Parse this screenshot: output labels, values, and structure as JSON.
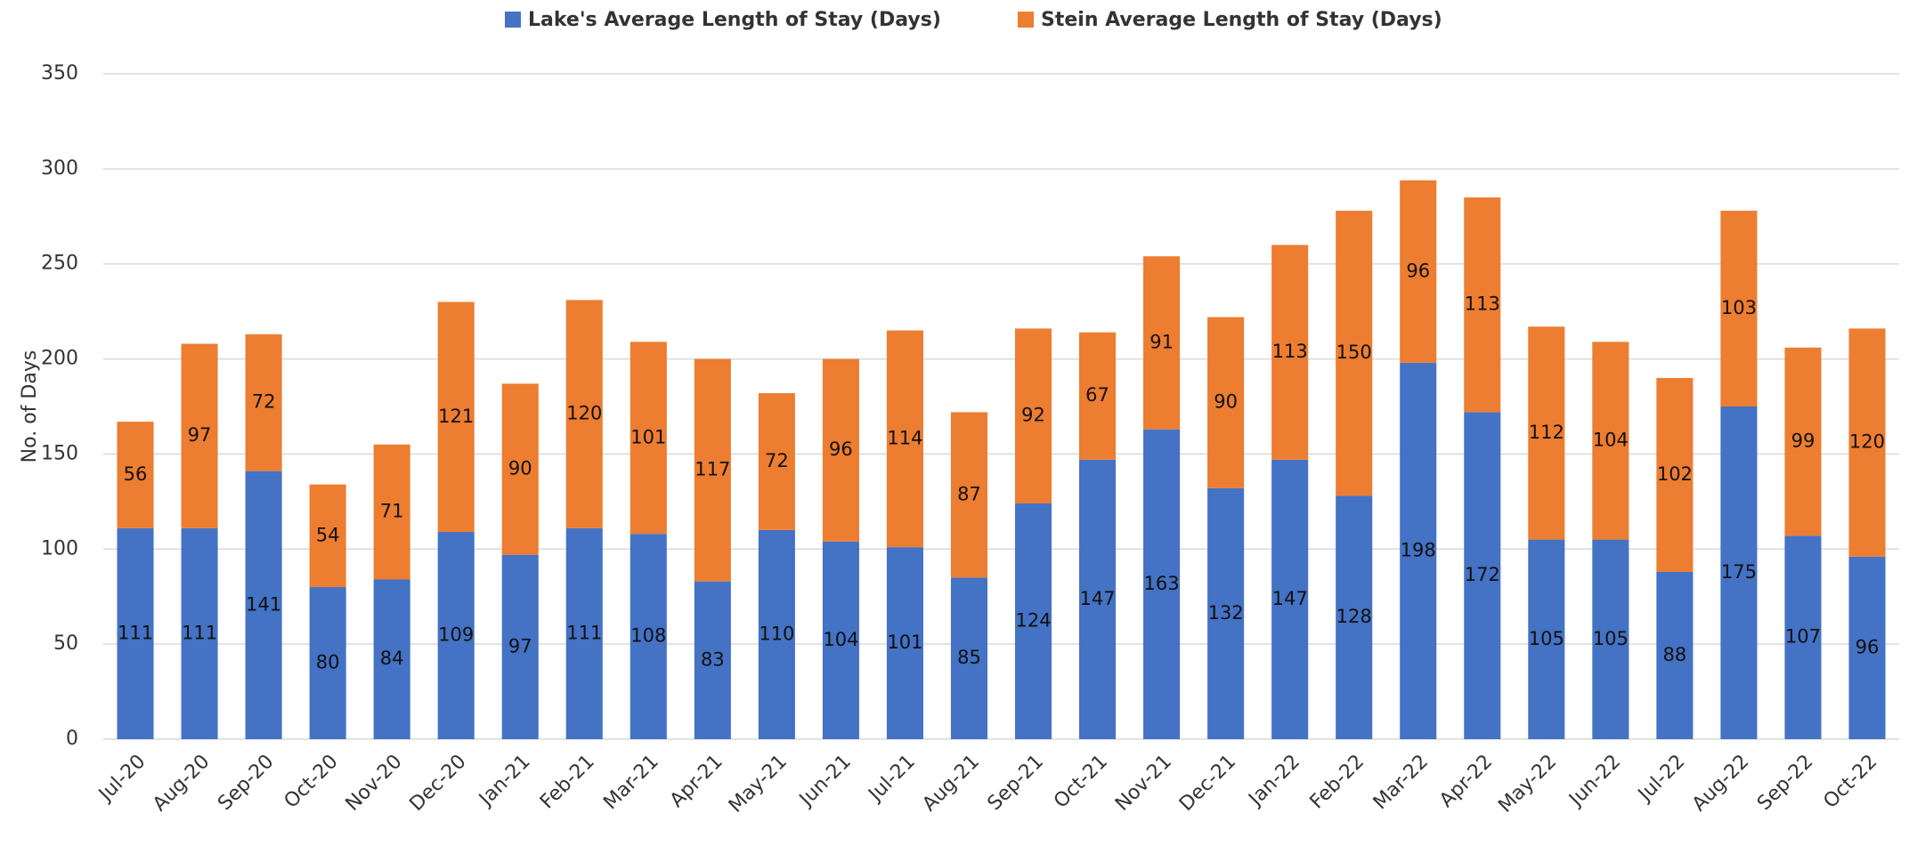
{
  "chart_data": {
    "type": "stacked_bar",
    "y_label": "No. of Days",
    "categories": [
      "Jul-20",
      "Aug-20",
      "Sep-20",
      "Oct-20",
      "Nov-20",
      "Dec-20",
      "Jan-21",
      "Feb-21",
      "Mar-21",
      "Apr-21",
      "May-21",
      "Jun-21",
      "Jul-21",
      "Aug-21",
      "Sep-21",
      "Oct-21",
      "Nov-21",
      "Dec-21",
      "Jan-22",
      "Feb-22",
      "Mar-22",
      "Apr-22",
      "May-22",
      "Jun-22",
      "Jul-22",
      "Aug-22",
      "Sep-22",
      "Oct-22"
    ],
    "series": [
      {
        "name": "Lake's Average Length of Stay (Days)",
        "color": "#4472c4",
        "values": [
          111,
          111,
          141,
          80,
          84,
          109,
          97,
          111,
          108,
          83,
          110,
          104,
          101,
          85,
          124,
          147,
          163,
          132,
          147,
          128,
          198,
          172,
          105,
          105,
          88,
          175,
          107,
          96
        ]
      },
      {
        "name": "Stein Average Length of Stay (Days)",
        "color": "#ed7d31",
        "values": [
          56,
          97,
          72,
          54,
          71,
          121,
          90,
          120,
          101,
          117,
          72,
          96,
          114,
          87,
          92,
          67,
          91,
          90,
          113,
          150,
          96,
          113,
          112,
          104,
          102,
          103,
          99,
          120
        ]
      }
    ],
    "ylim": [
      0,
      350
    ],
    "yticks": [
      0,
      50,
      100,
      150,
      200,
      250,
      300,
      350
    ],
    "grid": true,
    "legend": "top"
  }
}
